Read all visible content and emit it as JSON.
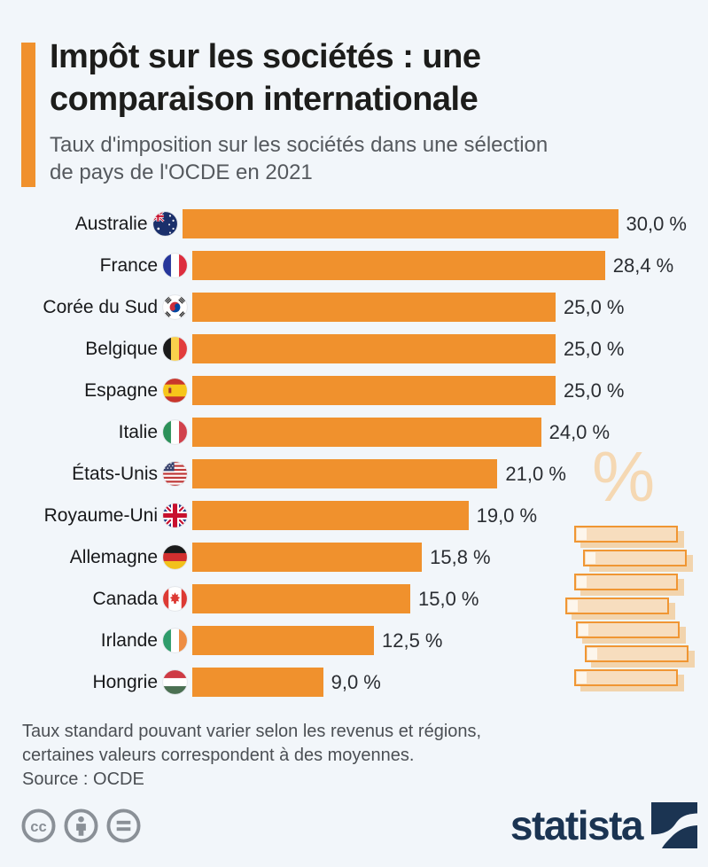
{
  "header": {
    "title_lines": [
      "Impôt sur les sociétés : une",
      "comparaison internationale"
    ],
    "subtitle_lines": [
      "Taux d'imposition sur les sociétés dans une sélection",
      "de pays de l'OCDE en 2021"
    ],
    "accent_color": "#F0912D"
  },
  "chart_data": {
    "type": "bar",
    "orientation": "horizontal",
    "title": "Taux d'imposition sur les sociétés dans une sélection de pays de l'OCDE en 2021",
    "unit": "%",
    "xlim": [
      0,
      30
    ],
    "bar_color": "#F0912D",
    "categories": [
      "Australie",
      "France",
      "Corée du Sud",
      "Belgique",
      "Espagne",
      "Italie",
      "États-Unis",
      "Royaume-Uni",
      "Allemagne",
      "Canada",
      "Irlande",
      "Hongrie"
    ],
    "values": [
      30.0,
      28.4,
      25.0,
      25.0,
      25.0,
      24.0,
      21.0,
      19.0,
      15.8,
      15.0,
      12.5,
      9.0
    ],
    "value_labels": [
      "30,0 %",
      "28,4 %",
      "25,0 %",
      "25,0 %",
      "25,0 %",
      "24,0 %",
      "21,0 %",
      "19,0 %",
      "15,8 %",
      "15,0 %",
      "12,5 %",
      "9,0 %"
    ],
    "flags": [
      "au",
      "fr",
      "kr",
      "be",
      "es",
      "it",
      "us",
      "gb",
      "de",
      "ca",
      "ie",
      "hu"
    ]
  },
  "decoration": {
    "percent_symbol": "%"
  },
  "footer": {
    "note_lines": [
      "Taux standard pouvant varier selon les revenus et régions,",
      "certaines valeurs correspondent à des moyennes."
    ],
    "source": "Source : OCDE"
  },
  "branding": {
    "logo_text": "statista",
    "license_icons": [
      "cc-icon",
      "attribution-icon",
      "no-derivatives-icon"
    ],
    "logo_color": "#1B3452"
  }
}
